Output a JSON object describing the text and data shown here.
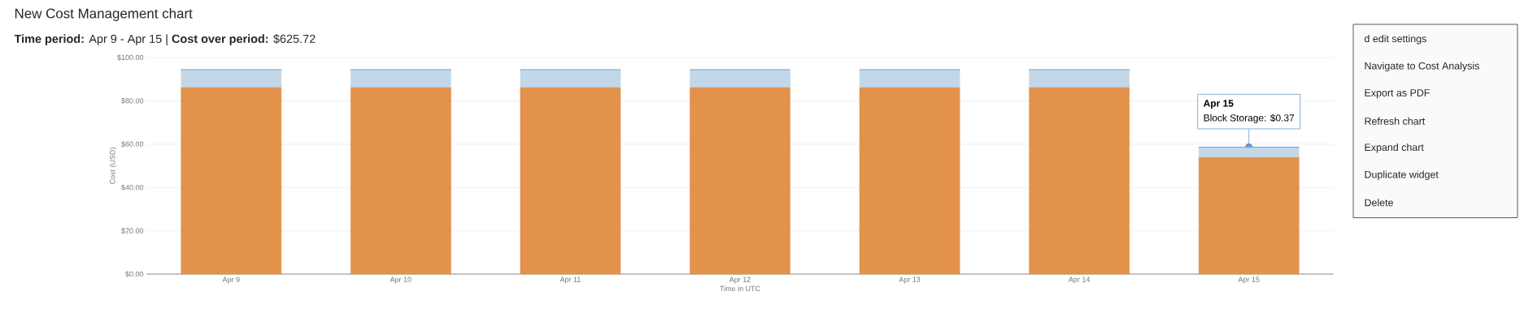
{
  "chart_data": {
    "type": "bar",
    "title": "New Cost Management chart",
    "subtitle": "**Time period:** Apr 9 - Apr 15 | **Cost over period:** $625.72",
    "xlabel": "Time in UTC",
    "ylabel": "Cost (USD)",
    "categories": [
      "Apr 9",
      "Apr 10",
      "Apr 11",
      "Apr 12",
      "Apr 13",
      "Apr 14",
      "Apr 15"
    ],
    "stacked": true,
    "series": [
      {
        "color": "#e2924b",
        "values": [
          86.1,
          86.1,
          86.1,
          86.1,
          86.1,
          86.1,
          53.8
        ]
      },
      {
        "color": "#c2d8e8",
        "values": [
          8.0,
          8.0,
          8.0,
          8.0,
          8.0,
          8.0,
          4.5
        ]
      },
      {
        "color": "#6a9bd1",
        "values": [
          0.37,
          0.37,
          0.37,
          0.37,
          0.37,
          0.37,
          0.37
        ]
      }
    ],
    "ylim": [
      0,
      100
    ],
    "yticks": [
      {
        "value": 0,
        "label": "$0.00"
      },
      {
        "value": 20,
        "label": "$20.00"
      },
      {
        "value": 40,
        "label": "$40.00"
      },
      {
        "value": 60,
        "label": "$60.00"
      },
      {
        "value": 80,
        "label": "$80.00"
      },
      {
        "value": 100,
        "label": "$100.00"
      }
    ],
    "grid": "y",
    "annotations": [
      "Apr 15",
      {
        "text": "Block Storage: $0.37",
        "x": "Apr 15",
        "y": 58.67
      },
      "d edit settings",
      "Navigate to Cost Analysis",
      "Export as PDF",
      "Refresh chart",
      "Expand chart",
      "Duplicate widget",
      "Delete"
    ]
  }
}
